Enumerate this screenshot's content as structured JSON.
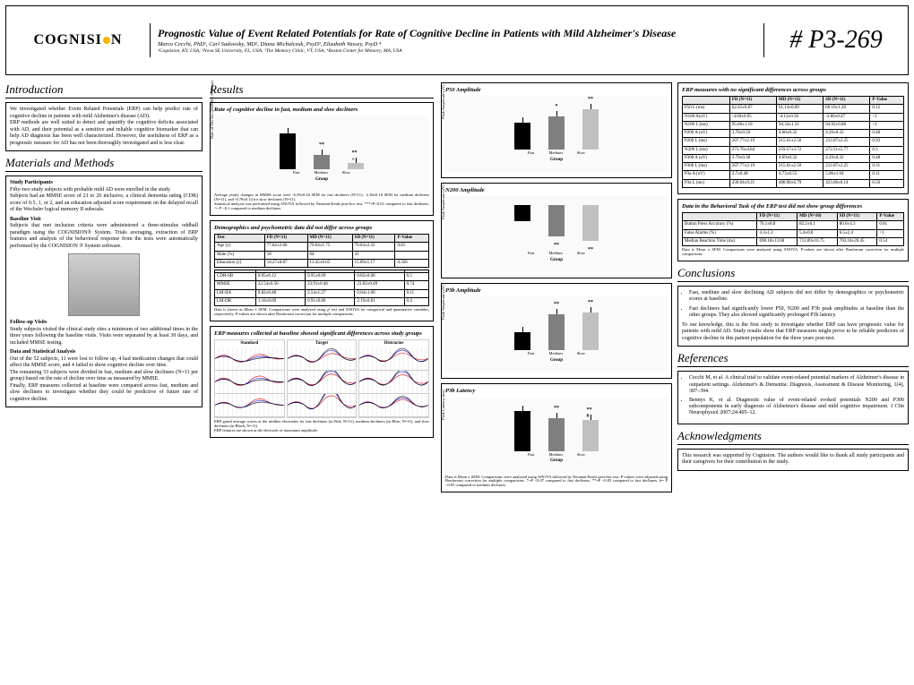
{
  "header": {
    "logo": "COGNISI   N",
    "title": "Prognostic Value of Event Related Potentials for Rate of Cognitive Decline in Patients with Mild Alzheimer's Disease",
    "authors": "Marco Cecchi, PhD¹, Carl Sadowsky, MD², Diana Michalczuk, PsyD³, Elizabeth Vassey, PsyD ⁴",
    "affiliations": "¹Cognision, KY, USA; ²Nova SE University, FL, USA; ³The Memory Clinic, VT, USA; ⁴Boston Center for Memory, MA, USA",
    "poster_num": "# P3-269"
  },
  "intro": {
    "heading": "Introduction",
    "text": "We investigated whether Event Related Potentials (ERP) can help predict rate of cognitive decline in patients with mild Alzheimer's disease (AD).\nERP methods are well suited to detect and quantify the cognitive deficits associated with AD, and their potential as a sensitive and reliable cognitive biomarker that can help AD diagnosis has been well characterized. However, the usefulness of ERP as a prognostic measure for AD has not been thoroughly investigated and is less clear."
  },
  "methods": {
    "heading": "Materials and Methods",
    "participants_head": "Study Participants",
    "participants": "Fifty-two study subjects with probable mild AD were enrolled in the study.\nSubjects had an MMSE score of 21 to 26 inclusive, a clinical dementia rating (CDR) score of 0.5, 1, or 2, and an education adjusted score requirement on the delayed recall of the Wechsler logical memory II subscale.",
    "baseline_head": "Baseline Visit",
    "baseline": "Subjects that met inclusion criteria were administered a three-stimulus oddball paradigm using the COGNISION® System. Trials averaging, extraction of ERP features and analysis of the behavioral response from the tests were automatically performed by the COGNISION ® System software.",
    "followup_head": "Follow-up Visits",
    "followup": "Study subjects visited the clinical study sites a minimum of two additional times in the three years following the baseline visits. Visits were separated by at least 30 days, and included MMSE testing.",
    "stats_head": "Data and Statistical Analysis",
    "stats": "Out of the 52 subjects, 11 were lost to follow up, 4 had medication changes that could affect the MMSE score, and 4 failed to show cognitive decline over time.\nThe remaining 33 subjects were divided in fast, medium and slow decliners (N=11 per group) based on the rate of decline over time as measured by MMSE.\nFinally, ERP measures collected at baseline were compared across fast, medium and slow decliners to investigate whether they could be predictive of future rate of cognitive decline."
  },
  "results": {
    "heading": "Results",
    "fig1_title": "Rate of cognitive decline in fast, medium and slow decliners",
    "fig1_caption": "Average yearly changes in MMSE score were -6.59±0.94 SEM for fast decliners (N=11), -2.36±0.18 SEM for medium decliners (N=11), and -0.78±0.14 for slow decliners (N=11).\nStatistical analysis was performed using ANOVA followed by Neuman-Keuls post-hoc test. ***=P<0.01 compared to fast decliners. ^= P <0.1 compared to medium decliners.",
    "bars1": {
      "fast": 40,
      "medium": 16,
      "slow": 7,
      "colors": [
        "#000",
        "#808080",
        "#c0c0c0"
      ],
      "sig_med": "**",
      "sig_slow": "** ^"
    },
    "demo_title": "Demographics and psychometric data did not differ across groups",
    "table1": {
      "cols": [
        "Test",
        "FD (N=11)",
        "MD (N=11)",
        "SD (N=11)",
        "P-Value"
      ],
      "rows": [
        [
          "Age (y)",
          "77.82±2.66",
          "79.64±1.75",
          "79.04±2.43",
          "0.81"
        ],
        [
          "Male (%)",
          "18",
          "64",
          "41",
          ""
        ],
        [
          "Education (y)",
          "14.27±0.87",
          "13.45±0.65",
          "15.09±1.17",
          "0.326"
        ]
      ]
    },
    "table2": {
      "cols": [
        "",
        "",
        "",
        "",
        ""
      ],
      "rows": [
        [
          "CDR-SB",
          "0.95±0.12",
          "0.95±0.09",
          "0.82±0.08",
          "0.5"
        ],
        [
          "MMSE",
          "22.54±0.56",
          "23.91±0.46",
          "23.82±0.49",
          "0.74"
        ],
        [
          "LM-IIA",
          "0.82±0.48",
          "2.54±1.27",
          "0.64±1.06",
          "0.11"
        ],
        [
          "LM-DR",
          "1.18±0.69",
          "0.91±0.80",
          "2.19±0.81",
          "0.4"
        ]
      ]
    },
    "table_caption": "Data is shown as Mean ± SEM. Comparisons were analyzed using χ² test and ANOVA for categorical and quantitative variables, respectively. P-values are shown after Bonferroni correction for multiple comparisons.",
    "erp_title": "ERP measures collected at baseline showed significant differences across study groups",
    "wave_cols": [
      "Standard",
      "Target",
      "Distractor"
    ],
    "wave_caption": "ERP grand average waves at the midline electrodes for fast decliners (in Red; N=11), medium decliners (in Blue; N=11), and slow decliners (in Black; N=11).\nERP features are shown at the electrode of maximum amplitude.",
    "p50_title": "P50 Amplitude",
    "p50_bars": {
      "vals": [
        30,
        37,
        45
      ],
      "sigs": [
        "",
        "*",
        "**"
      ]
    },
    "n200_title": "N200 Amplitude",
    "n200_bars": {
      "vals": [
        18,
        35,
        40
      ],
      "sigs": [
        "",
        "**",
        "**"
      ]
    },
    "p3b_title": "P3b Amplitude",
    "p3b_bars": {
      "vals": [
        20,
        40,
        42
      ],
      "sigs": [
        "",
        "**",
        "**"
      ]
    },
    "p3b_lat_title": "P3b Latency",
    "p3b_lat_bars": {
      "vals": [
        45,
        37,
        35
      ],
      "sigs": [
        "",
        "**",
        "** #"
      ]
    },
    "p3b_lat_caption": "Data is Mean ± SEM. Comparisons were analyzed using ANOVA followed by Neuman-Keuls post-hoc test. P-values were adjusted using Bonferroni correction for multiple comparisons. *=P <0.07 compared to fast decliners. **=P <0.05 compared to fast decliners. #= P <0.05 compared to medium decliners.",
    "nosig_title": "ERP measures with no significant differences across groups",
    "table3": {
      "cols": [
        "",
        "FD (N=11)",
        "MD (N=11)",
        "SD (N=11)",
        "P-Value"
      ],
      "rows": [
        [
          "P50 L (ms)",
          "62.45±0.87",
          "61.14±0.69",
          "60.10±1.20",
          "0.12"
        ],
        [
          "N100 A(uV)",
          "-4.69±0.95",
          "-4.12±0.36",
          "-3.80±0.47",
          ">1"
        ],
        [
          "N100 L (ms)",
          "95.66±1.18",
          "94.34±1.31",
          "94.92±0.88",
          ">1"
        ],
        [
          "P200 A (uV)",
          "3.70±0.50",
          "4.68±0.32",
          "4.26±0.32",
          "0.48"
        ],
        [
          "P200 L (ms)",
          "207.77±2.19",
          "215.61±2.50",
          "212.07±2.25",
          "0.93"
        ],
        [
          "N200 L (ms)",
          "273.76±4.84",
          "259.57±3.72",
          "272.51±5.77",
          "0.3"
        ],
        [
          "P300 A (uV)",
          "3.79±0.38",
          "4.69±0.32",
          "4.29±0.32",
          "0.48"
        ],
        [
          "P300 L (ms)",
          "207.77±2.19",
          "215.61±2.50",
          "212.07±2.25",
          "0.31"
        ],
        [
          "P3a A (uV)",
          "2.7±0.48",
          "4.73±0.55",
          "5.06±1.04",
          "0.11"
        ],
        [
          "P3a L (ms)",
          "430.04±9.21",
          "408.98±6.79",
          "423.06±6.14",
          "0.56"
        ]
      ]
    },
    "beh_title": "Data in the Behavioral Task of the ERP test did not show group differences",
    "table4": {
      "cols": [
        "",
        "FD (N=11)",
        "MD (N=10)",
        "SD (N=11)",
        "P-Value"
      ],
      "rows": [
        [
          "Button Press Accuracy (%)",
          "76.1±8.8",
          "82.2±6.1",
          "80.6±4.3",
          "0.81"
        ],
        [
          "False Alarms (%)",
          "4.3±1.2",
          "5.4±0.8",
          "6.5±2.4",
          ">1"
        ],
        [
          "Median Reaction Time (ms)",
          "698.18±13.68",
          "712.89±16.75",
          "703.18±20.45",
          "0.54"
        ]
      ]
    },
    "beh_caption": "Data is Mean ± SEM. Comparisons were analyzed using ANOVA. P-values are shown after Bonferroni correction for multiple comparisons."
  },
  "conclusions": {
    "heading": "Conclusions",
    "bullets": [
      "Fast, medium and slow declining AD subjects did not differ by demographics or psychometric scores at baseline.",
      "Fast decliners had significantly lower P50, N200 and P3b peak amplitudes at baseline than the other groups. They also showed significantly prolonged P3b latency."
    ],
    "para": "To our knowledge, this is the first study to investigate whether ERP can have prognostic value for patients with mild AD. Study results show that ERP measures might prove to be reliable predictors of cognitive decline in this patient population for the three years post-test."
  },
  "references": {
    "heading": "References",
    "refs": [
      "Cecchi M, et al. A clinical trial to validate event-related potential markers of Alzheimer's disease in outpatient settings. Alzheimer's & Dementia: Diagnosis, Assessment & Disease Monitoring, 1(4), 387–394.",
      "Bennys K, et al. Diagnostic value of event-related evoked potentials N200 and P300 subcomponents in early diagnosis of Alzheimer's disease and mild cognitive impairment. J Clin Neurophysiol 2007;24:405–12."
    ]
  },
  "ack": {
    "heading": "Acknowledgments",
    "text": "This research was supported by Cognision. The authors would like to thank all study participants and their caregivers for their contribution to the study."
  },
  "xlabels": [
    "Fast",
    "Medium",
    "Slow"
  ],
  "group_label": "Group"
}
